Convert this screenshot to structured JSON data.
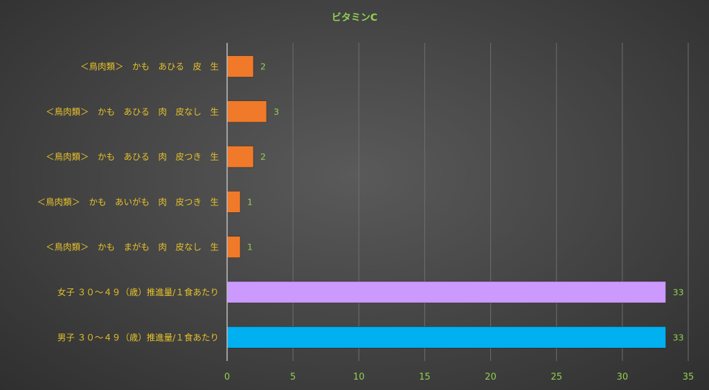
{
  "chart_data": {
    "type": "bar",
    "orientation": "horizontal",
    "title": "ビタミンC",
    "categories": [
      "＜鳥肉類＞　かも　あひる　皮　生",
      "＜鳥肉類＞　かも　あひる　肉　皮なし　生",
      "＜鳥肉類＞　かも　あひる　肉　皮つき　生",
      "＜鳥肉類＞　かも　あいがも　肉　皮つき　生",
      "＜鳥肉類＞　かも　まがも　肉　皮なし　生",
      "女子 ３０～４９（歳）推進量/１食あたり",
      "男子 ３０～４９（歳）推進量/１食あたり"
    ],
    "values": [
      2,
      3,
      2,
      1,
      1,
      33.3,
      33.3
    ],
    "data_labels": [
      "2",
      "3",
      "2",
      "1",
      "1",
      "33",
      "33"
    ],
    "bar_colors": [
      "#f07a2a",
      "#f07a2a",
      "#f07a2a",
      "#f07a2a",
      "#f07a2a",
      "#cc99ff",
      "#00b0f0"
    ],
    "xlim": [
      0,
      35
    ],
    "xticks": [
      0,
      5,
      10,
      15,
      20,
      25,
      30,
      35
    ],
    "grid": true,
    "legend": "none",
    "colors": {
      "title": "#92d050",
      "category_text": "#e6c229",
      "tick_text": "#92d050",
      "data_label_text": "#92d050",
      "gridline": "#6f6f6f",
      "axis": "#bfbfbf"
    }
  }
}
